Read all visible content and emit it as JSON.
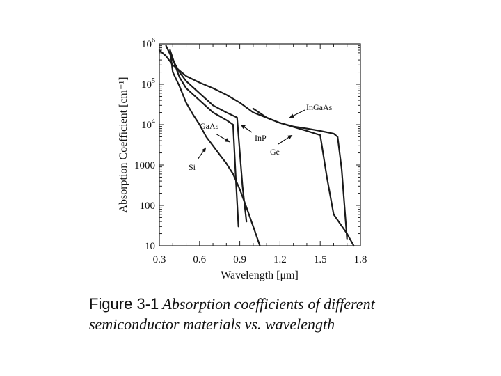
{
  "chart_data": {
    "type": "line",
    "title": "",
    "xlabel": "Wavelength [μm]",
    "ylabel": "Absorption Coefficient [cm⁻¹]",
    "xlim": [
      0.3,
      1.8
    ],
    "ylim": [
      10,
      1000000
    ],
    "y_scale": "log",
    "x_ticks": [
      {
        "value": 0.3,
        "label": "0.3"
      },
      {
        "value": 0.6,
        "label": "0.6"
      },
      {
        "value": 0.9,
        "label": "0.9"
      },
      {
        "value": 1.2,
        "label": "1.2"
      },
      {
        "value": 1.5,
        "label": "1.5"
      },
      {
        "value": 1.8,
        "label": "1.8"
      }
    ],
    "y_ticks": [
      {
        "value": 10,
        "label": "10",
        "power": ""
      },
      {
        "value": 100,
        "label": "100",
        "power": ""
      },
      {
        "value": 1000,
        "label": "1000",
        "power": ""
      },
      {
        "value": 10000,
        "label": "10",
        "power": "4"
      },
      {
        "value": 100000,
        "label": "10",
        "power": "5"
      },
      {
        "value": 1000000,
        "label": "10",
        "power": "6"
      }
    ],
    "series": [
      {
        "name": "Si",
        "x": [
          0.38,
          0.4,
          0.45,
          0.5,
          0.55,
          0.6,
          0.65,
          0.7,
          0.75,
          0.8,
          0.85,
          0.9,
          0.95,
          1.0,
          1.05
        ],
        "y": [
          700000,
          200000,
          90000,
          35000,
          18000,
          10000,
          5000,
          3000,
          1800,
          1100,
          600,
          250,
          90,
          30,
          10
        ]
      },
      {
        "name": "GaAs",
        "x": [
          0.38,
          0.42,
          0.45,
          0.5,
          0.6,
          0.7,
          0.8,
          0.85,
          0.87,
          0.89
        ],
        "y": [
          700000,
          280000,
          150000,
          80000,
          40000,
          20000,
          13000,
          10000,
          500,
          30
        ]
      },
      {
        "name": "InP",
        "x": [
          0.35,
          0.4,
          0.45,
          0.5,
          0.6,
          0.7,
          0.8,
          0.88,
          0.92,
          0.95
        ],
        "y": [
          900000,
          400000,
          200000,
          120000,
          60000,
          30000,
          20000,
          15000,
          300,
          40
        ]
      },
      {
        "name": "Ge",
        "x": [
          0.3,
          0.35,
          0.4,
          0.5,
          0.6,
          0.7,
          0.8,
          0.9,
          1.0,
          1.2,
          1.4,
          1.5,
          1.55,
          1.6,
          1.7,
          1.75
        ],
        "y": [
          700000,
          500000,
          300000,
          160000,
          110000,
          80000,
          55000,
          35000,
          20000,
          11000,
          7000,
          5500,
          500,
          60,
          20,
          10
        ]
      },
      {
        "name": "InGaAs",
        "x": [
          1.0,
          1.1,
          1.2,
          1.3,
          1.4,
          1.5,
          1.6,
          1.63,
          1.66,
          1.7
        ],
        "y": [
          25000,
          15000,
          11000,
          9000,
          8000,
          7000,
          6000,
          5000,
          800,
          15
        ]
      }
    ],
    "annotations": [
      {
        "label": "Si",
        "series": "Si"
      },
      {
        "label": "GaAs",
        "series": "GaAs"
      },
      {
        "label": "InP",
        "series": "InP"
      },
      {
        "label": "Ge",
        "series": "Ge"
      },
      {
        "label": "InGaAs",
        "series": "InGaAs"
      }
    ],
    "grid": false,
    "legend": "none"
  },
  "caption": {
    "head": "Figure 3-1",
    "text": " Absorption coefficients of different semiconductor materials vs. wavelength"
  }
}
